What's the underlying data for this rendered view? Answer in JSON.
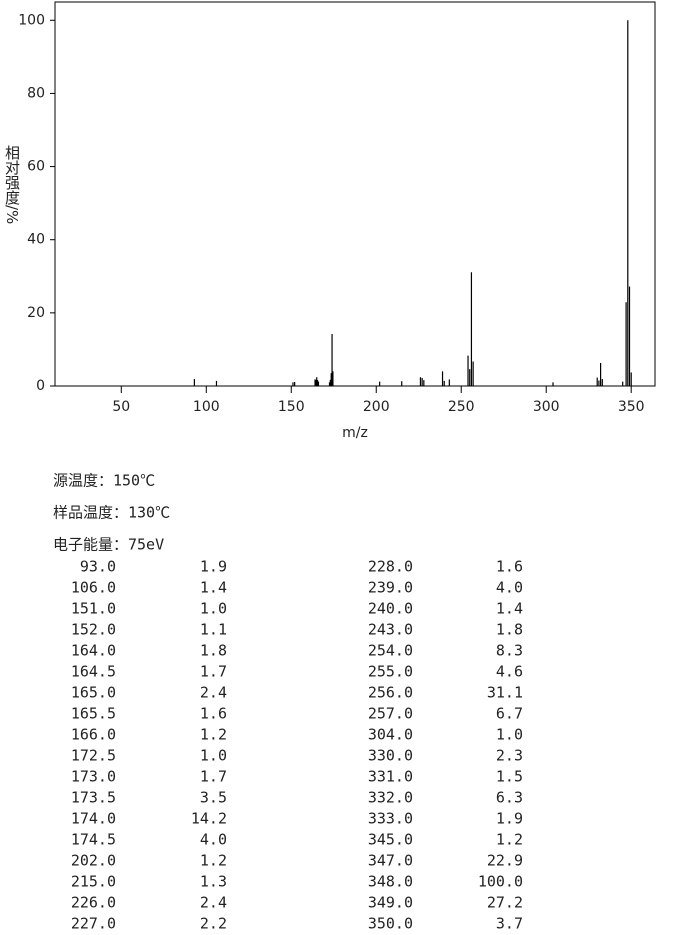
{
  "chart_data": {
    "type": "stem",
    "x_label": "m/z",
    "y_label": "相对强度/%",
    "color": "#000000",
    "x": [
      93.0,
      106.0,
      151.0,
      152.0,
      164.0,
      164.5,
      165.0,
      165.5,
      166.0,
      172.5,
      173.0,
      173.5,
      174.0,
      174.5,
      202.0,
      215.0,
      226.0,
      227.0,
      228.0,
      239.0,
      240.0,
      243.0,
      254.0,
      255.0,
      256.0,
      257.0,
      304.0,
      330.0,
      331.0,
      332.0,
      333.0,
      345.0,
      347.0,
      348.0,
      349.0,
      350.0
    ],
    "values": [
      1.9,
      1.4,
      1.0,
      1.1,
      1.8,
      1.7,
      2.4,
      1.6,
      1.2,
      1.0,
      1.7,
      3.5,
      14.2,
      4.0,
      1.2,
      1.3,
      2.4,
      2.2,
      1.6,
      4.0,
      1.4,
      1.8,
      8.3,
      4.6,
      31.1,
      6.7,
      1.0,
      2.3,
      1.5,
      6.3,
      1.9,
      1.2,
      22.9,
      100.0,
      27.2,
      3.7
    ],
    "xlim": [
      11,
      364
    ],
    "ylim": [
      0,
      105
    ],
    "xticks": [
      50,
      100,
      150,
      200,
      250,
      300,
      350
    ],
    "yticks": [
      0,
      20,
      40,
      60,
      80,
      100
    ]
  },
  "info": [
    "源温度：150℃",
    "样品温度：130℃",
    "电子能量：75eV"
  ],
  "table": {
    "rows": [
      [
        "93.0",
        "1.9",
        "228.0",
        "1.6"
      ],
      [
        "106.0",
        "1.4",
        "239.0",
        "4.0"
      ],
      [
        "151.0",
        "1.0",
        "240.0",
        "1.4"
      ],
      [
        "152.0",
        "1.1",
        "243.0",
        "1.8"
      ],
      [
        "164.0",
        "1.8",
        "254.0",
        "8.3"
      ],
      [
        "164.5",
        "1.7",
        "255.0",
        "4.6"
      ],
      [
        "165.0",
        "2.4",
        "256.0",
        "31.1"
      ],
      [
        "165.5",
        "1.6",
        "257.0",
        "6.7"
      ],
      [
        "166.0",
        "1.2",
        "304.0",
        "1.0"
      ],
      [
        "172.5",
        "1.0",
        "330.0",
        "2.3"
      ],
      [
        "173.0",
        "1.7",
        "331.0",
        "1.5"
      ],
      [
        "173.5",
        "3.5",
        "332.0",
        "6.3"
      ],
      [
        "174.0",
        "14.2",
        "333.0",
        "1.9"
      ],
      [
        "174.5",
        "4.0",
        "345.0",
        "1.2"
      ],
      [
        "202.0",
        "1.2",
        "347.0",
        "22.9"
      ],
      [
        "215.0",
        "1.3",
        "348.0",
        "100.0"
      ],
      [
        "226.0",
        "2.4",
        "349.0",
        "27.2"
      ],
      [
        "227.0",
        "2.2",
        "350.0",
        "3.7"
      ]
    ]
  }
}
